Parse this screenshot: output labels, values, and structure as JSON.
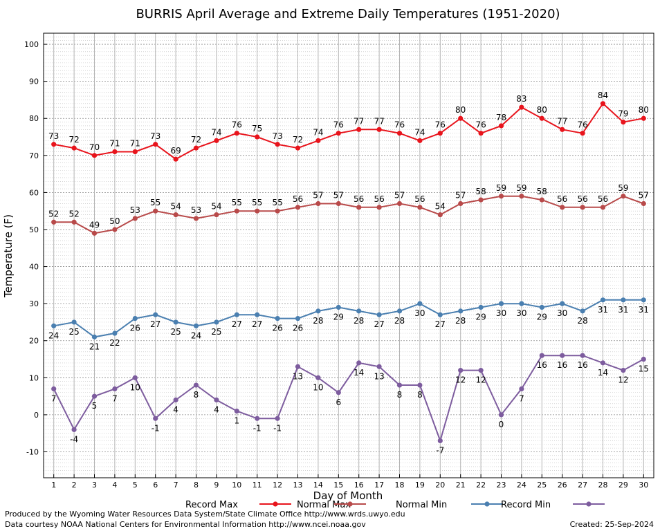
{
  "chart_data": {
    "type": "line",
    "title": "BURRIS April Average and Extreme Daily Temperatures (1951-2020)",
    "xlabel": "Day of Month",
    "ylabel": "Temperature (F)",
    "xlim": [
      0.5,
      30.5
    ],
    "ylim": [
      -17,
      103
    ],
    "x": [
      1,
      2,
      3,
      4,
      5,
      6,
      7,
      8,
      9,
      10,
      11,
      12,
      13,
      14,
      15,
      16,
      17,
      18,
      19,
      20,
      21,
      22,
      23,
      24,
      25,
      26,
      27,
      28,
      29,
      30
    ],
    "x_tick_labels": [
      "1",
      "2",
      "3",
      "4",
      "5",
      "6",
      "7",
      "8",
      "9",
      "10",
      "11",
      "12",
      "13",
      "14",
      "15",
      "16",
      "17",
      "18",
      "19",
      "20",
      "21",
      "22",
      "23",
      "24",
      "25",
      "26",
      "27",
      "28",
      "29",
      "30"
    ],
    "y_ticks": [
      -10,
      0,
      10,
      20,
      30,
      40,
      50,
      60,
      70,
      80,
      90,
      100
    ],
    "y_tick_labels": [
      "-10",
      "0",
      "10",
      "20",
      "30",
      "40",
      "50",
      "60",
      "70",
      "80",
      "90",
      "100"
    ],
    "grid": true,
    "legend_position": "bottom",
    "series": [
      {
        "name": "Record Max",
        "color": "#e8141c",
        "label_position": "above",
        "values": [
          73,
          72,
          70,
          71,
          71,
          73,
          69,
          72,
          74,
          76,
          75,
          73,
          72,
          74,
          76,
          77,
          77,
          76,
          74,
          76,
          80,
          76,
          78,
          83,
          80,
          77,
          76,
          84,
          79,
          80
        ]
      },
      {
        "name": "Normal Max",
        "color": "#b84a4a",
        "label_position": "above",
        "values": [
          52,
          52,
          49,
          50,
          53,
          55,
          54,
          53,
          54,
          55,
          55,
          55,
          56,
          57,
          57,
          56,
          56,
          57,
          56,
          54,
          57,
          58,
          59,
          59,
          58,
          56,
          56,
          56,
          59,
          57
        ]
      },
      {
        "name": "Normal Min",
        "color": "#4a7fb0",
        "label_position": "below",
        "values": [
          24,
          25,
          21,
          22,
          26,
          27,
          25,
          24,
          25,
          27,
          27,
          26,
          26,
          28,
          29,
          28,
          27,
          28,
          30,
          27,
          28,
          29,
          30,
          30,
          29,
          30,
          28,
          31,
          31,
          31
        ]
      },
      {
        "name": "Record Min",
        "color": "#7d5c9e",
        "label_position": "below",
        "values": [
          7,
          -4,
          5,
          7,
          10,
          -1,
          4,
          8,
          4,
          1,
          -1,
          -1,
          13,
          10,
          6,
          14,
          13,
          8,
          8,
          -7,
          12,
          12,
          0,
          7,
          16,
          16,
          16,
          14,
          12,
          15
        ]
      }
    ]
  },
  "footer": {
    "produced_by": "Produced by the Wyoming Water Resources Data System/State Climate Office http://www.wrds.uwyo.edu",
    "courtesy": "Data courtesy NOAA National Centers for Environmental Information http://www.ncei.noaa.gov",
    "created": "Created:  25-Sep-2024"
  }
}
